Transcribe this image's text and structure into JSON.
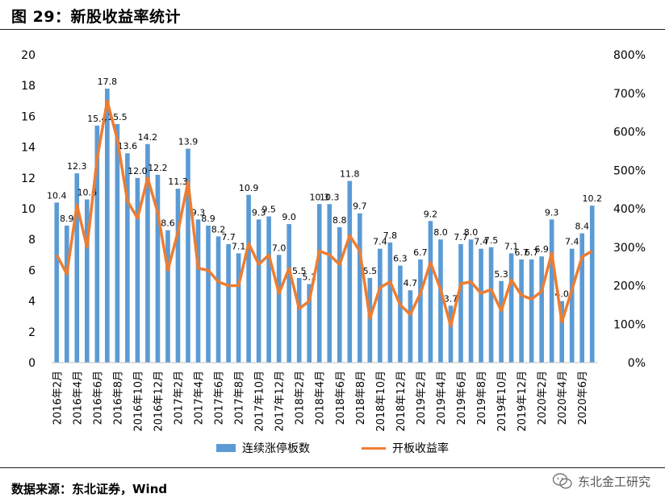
{
  "header": {
    "title": "图 29：新股收益率统计"
  },
  "footer": {
    "source": "数据来源：东北证券，Wind",
    "watermark": "东北金工研究"
  },
  "legend": {
    "bar_label": "连续涨停板数",
    "line_label": "开板收益率"
  },
  "chart_data": {
    "type": "bar",
    "legend_position": "bottom",
    "grid": false,
    "title": "",
    "xlabel": "",
    "ylabel": "",
    "ylim": [
      0,
      20
    ],
    "y_ticks": [
      "0",
      "2",
      "4",
      "6",
      "8",
      "10",
      "12",
      "14",
      "16",
      "18",
      "20"
    ],
    "y2lim": [
      0,
      800
    ],
    "y2_ticks": [
      "0%",
      "100%",
      "200%",
      "300%",
      "400%",
      "500%",
      "600%",
      "700%",
      "800%"
    ],
    "categories": [
      "2016年2月",
      "2016年3月",
      "2016年4月",
      "2016年5月",
      "2016年6月",
      "2016年7月",
      "2016年8月",
      "2016年9月",
      "2016年10月",
      "2016年11月",
      "2016年12月",
      "2017年1月",
      "2017年2月",
      "2017年3月",
      "2017年4月",
      "2017年5月",
      "2017年6月",
      "2017年7月",
      "2017年8月",
      "2017年9月",
      "2017年10月",
      "2017年11月",
      "2017年12月",
      "2018年1月",
      "2018年2月",
      "2018年3月",
      "2018年4月",
      "2018年5月",
      "2018年6月",
      "2018年7月",
      "2018年8月",
      "2018年9月",
      "2018年10月",
      "2018年11月",
      "2018年12月",
      "2019年1月",
      "2019年2月",
      "2019年3月",
      "2019年4月",
      "2019年5月",
      "2019年6月",
      "2019年7月",
      "2019年8月",
      "2019年9月",
      "2019年10月",
      "2019年11月",
      "2019年12月",
      "2020年1月",
      "2020年2月",
      "2020年3月",
      "2020年4月",
      "2020年5月",
      "2020年6月",
      "2020年7月"
    ],
    "x_tick_labels": [
      "2016年2月",
      "2016年4月",
      "2016年6月",
      "2016年8月",
      "2016年10月",
      "2016年12月",
      "2017年2月",
      "2017年4月",
      "2017年6月",
      "2017年8月",
      "2017年10月",
      "2017年12月",
      "2018年2月",
      "2018年4月",
      "2018年6月",
      "2018年8月",
      "2018年10月",
      "2018年12月",
      "2019年2月",
      "2019年4月",
      "2019年6月",
      "2019年8月",
      "2019年10月",
      "2019年12月",
      "2020年2月",
      "2020年4月",
      "2020年6月"
    ],
    "series": [
      {
        "name": "连续涨停板数",
        "type": "bar",
        "axis": "left",
        "color": "#5b9bd5",
        "values": [
          10.4,
          8.9,
          12.3,
          10.6,
          15.4,
          17.8,
          15.5,
          13.6,
          12.0,
          14.2,
          12.2,
          8.6,
          11.3,
          13.9,
          9.3,
          8.9,
          8.2,
          7.7,
          7.1,
          10.9,
          9.3,
          9.5,
          7.0,
          9.0,
          5.5,
          5.1,
          10.3,
          10.3,
          8.8,
          11.8,
          9.7,
          5.5,
          7.4,
          7.8,
          6.3,
          4.7,
          6.7,
          9.2,
          8.0,
          3.7,
          7.7,
          8.0,
          7.4,
          7.5,
          5.3,
          7.1,
          6.7,
          6.7,
          6.9,
          9.3,
          4.0,
          7.4,
          8.4,
          10.2
        ],
        "labels": [
          "10.4",
          "8.9",
          "12.3",
          "10.6",
          "15.4",
          "17.8",
          "15.5",
          "13.6",
          "12.0",
          "14.2",
          "12.2",
          "8.6",
          "11.3",
          "13.9",
          "9.3",
          "8.9",
          "8.2",
          "7.7",
          "7.1",
          "10.9",
          "9.3",
          "9.5",
          "7.0",
          "9.0",
          "5.5",
          "5.1",
          "10.3",
          "10.3",
          "8.8",
          "11.8",
          "9.7",
          "5.5",
          "7.4",
          "7.8",
          "6.3",
          "4.7",
          "6.7",
          "9.2",
          "8.0",
          "3.7",
          "7.7",
          "8.0",
          "7.4",
          "7.5",
          "5.3",
          "7.1",
          "6.7",
          "6.7",
          "6.9",
          "9.3",
          "4.0",
          "7.4",
          "8.4",
          "10.2"
        ]
      },
      {
        "name": "开板收益率",
        "type": "line",
        "axis": "right",
        "color": "#ed7d31",
        "values": [
          280,
          230,
          410,
          300,
          530,
          680,
          580,
          420,
          375,
          480,
          390,
          240,
          340,
          470,
          245,
          240,
          210,
          200,
          200,
          310,
          255,
          280,
          180,
          245,
          140,
          160,
          290,
          280,
          255,
          330,
          290,
          115,
          195,
          210,
          150,
          125,
          180,
          260,
          190,
          95,
          205,
          210,
          180,
          190,
          135,
          215,
          175,
          165,
          185,
          285,
          105,
          190,
          275,
          290
        ]
      }
    ]
  }
}
